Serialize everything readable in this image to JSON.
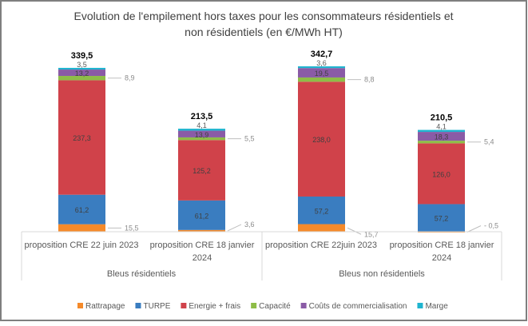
{
  "chart_data": {
    "type": "bar",
    "stacked": true,
    "title": "Evolution de l'empilement  hors taxes pour les consommateurs résidentiels et non résidentiels (en €/MWh HT)",
    "title_lines": [
      "Evolution de l'empilement  hors taxes pour les consommateurs résidentiels et",
      "non résidentiels (en €/MWh HT)"
    ],
    "groups": [
      {
        "label": "Bleus résidentiels",
        "categories": [
          0,
          1
        ]
      },
      {
        "label": "Bleus non résidentiels",
        "categories": [
          2,
          3
        ]
      }
    ],
    "categories": [
      [
        "proposition CRE 22 juin 2023"
      ],
      [
        "proposition CRE 18 janvier",
        "2024"
      ],
      [
        "proposition CRE 22juin 2023"
      ],
      [
        "proposition CRE 18 janvier",
        "2024"
      ]
    ],
    "totals": [
      "339,5",
      "213,5",
      "342,7",
      "210,5"
    ],
    "series": [
      {
        "name": "Rattrapage",
        "color": "#f58a2a",
        "values": [
          15.5,
          3.6,
          15.7,
          -0.5
        ],
        "labels": [
          "15,5",
          "3,6",
          "15,7",
          "- 0,5"
        ],
        "label_position": "outside"
      },
      {
        "name": "TURPE",
        "color": "#3a7dc0",
        "values": [
          61.2,
          61.2,
          57.2,
          57.2
        ],
        "labels": [
          "61,2",
          "61,2",
          "57,2",
          "57,2"
        ],
        "label_position": "inside"
      },
      {
        "name": "Energie + frais",
        "color": "#d0424a",
        "values": [
          237.3,
          125.2,
          238.0,
          126.0
        ],
        "labels": [
          "237,3",
          "125,2",
          "238,0",
          "126,0"
        ],
        "label_position": "inside"
      },
      {
        "name": "Capacité",
        "color": "#8ebd47",
        "values": [
          8.9,
          5.5,
          8.8,
          5.4
        ],
        "labels": [
          "8,9",
          "5,5",
          "8,8",
          "5,4"
        ],
        "label_position": "outside"
      },
      {
        "name": "Coûts de commercialisation",
        "color": "#8a5ba6",
        "values": [
          13.2,
          13.9,
          19.5,
          18.3
        ],
        "labels": [
          "13,2",
          "13,9",
          "19,5",
          "18,3"
        ],
        "label_position": "inside"
      },
      {
        "name": "Marge",
        "color": "#1fb4cf",
        "values": [
          3.5,
          4.1,
          3.6,
          4.1
        ],
        "labels": [
          "3,5",
          "4,1",
          "3,6",
          "4,1"
        ],
        "label_position": "above"
      }
    ],
    "legend_position": "bottom",
    "grid": false,
    "ylim": [
      0,
      345
    ]
  }
}
